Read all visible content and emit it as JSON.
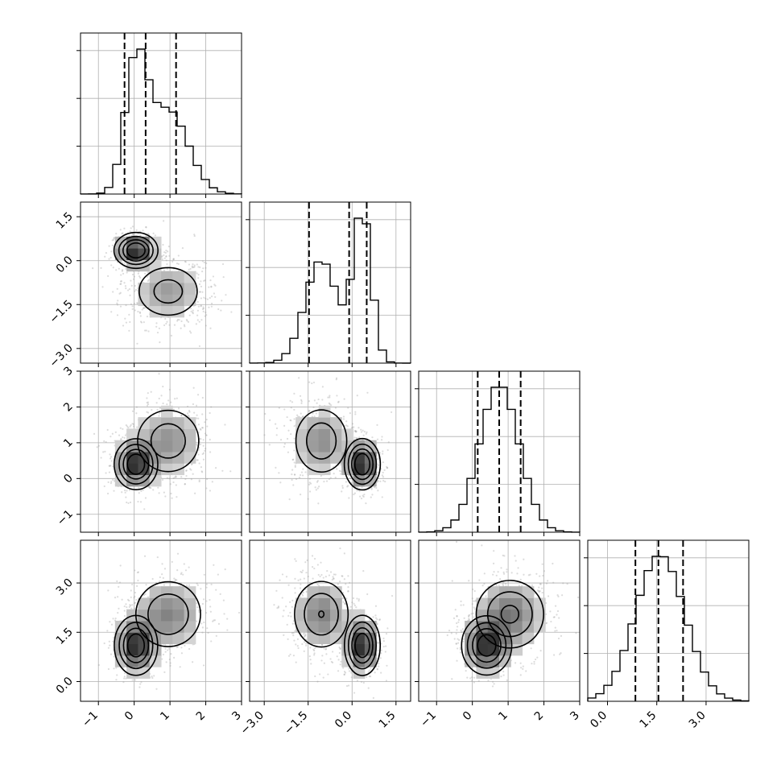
{
  "chart_data": {
    "type": "corner",
    "grid": true,
    "parameters": [
      {
        "range": [
          -1.5,
          3.0
        ],
        "ticks": [
          -1,
          0,
          1,
          2,
          3
        ],
        "tick_labels": [
          "−1",
          "0",
          "1",
          "2",
          "3"
        ],
        "mixture": [
          {
            "w": 0.45,
            "mu": 0.05,
            "sd": 0.3
          },
          {
            "w": 0.55,
            "mu": 0.95,
            "sd": 0.55
          }
        ],
        "quantiles": [
          -0.27,
          0.32,
          1.17
        ]
      },
      {
        "range": [
          -3.5,
          2.0
        ],
        "ticks": [
          -3.0,
          -1.5,
          0.0,
          1.5
        ],
        "tick_labels": [
          "−3.0",
          "−1.5",
          "0.0",
          "1.5"
        ],
        "mixture": [
          {
            "w": 0.45,
            "mu": 0.35,
            "sd": 0.3
          },
          {
            "w": 0.55,
            "mu": -1.05,
            "sd": 0.55
          }
        ],
        "quantiles": [
          -1.47,
          -0.1,
          0.5
        ]
      },
      {
        "range": [
          -1.5,
          3.0
        ],
        "ticks": [
          -1,
          0,
          1,
          2,
          3
        ],
        "tick_labels": [
          "−1",
          "0",
          "1",
          "2",
          "3"
        ],
        "mixture": [
          {
            "w": 1.0,
            "mu": 0.75,
            "sd": 0.55
          }
        ],
        "quantiles": [
          0.15,
          0.75,
          1.35
        ]
      },
      {
        "range": [
          -0.6,
          4.3
        ],
        "ticks": [
          0.0,
          1.5,
          3.0
        ],
        "tick_labels": [
          "0.0",
          "1.5",
          "3.0"
        ],
        "mixture": [
          {
            "w": 1.0,
            "mu": 1.6,
            "sd": 0.75
          }
        ],
        "quantiles": [
          0.85,
          1.55,
          2.3
        ]
      }
    ],
    "joint_clusters": [
      {
        "w": 0.45,
        "center": [
          0.05,
          0.35,
          0.4,
          1.1
        ],
        "sd": [
          0.3,
          0.3,
          0.35,
          0.45
        ]
      },
      {
        "w": 0.55,
        "center": [
          0.95,
          -1.05,
          1.05,
          2.05
        ],
        "sd": [
          0.55,
          0.55,
          0.55,
          0.6
        ]
      }
    ]
  }
}
